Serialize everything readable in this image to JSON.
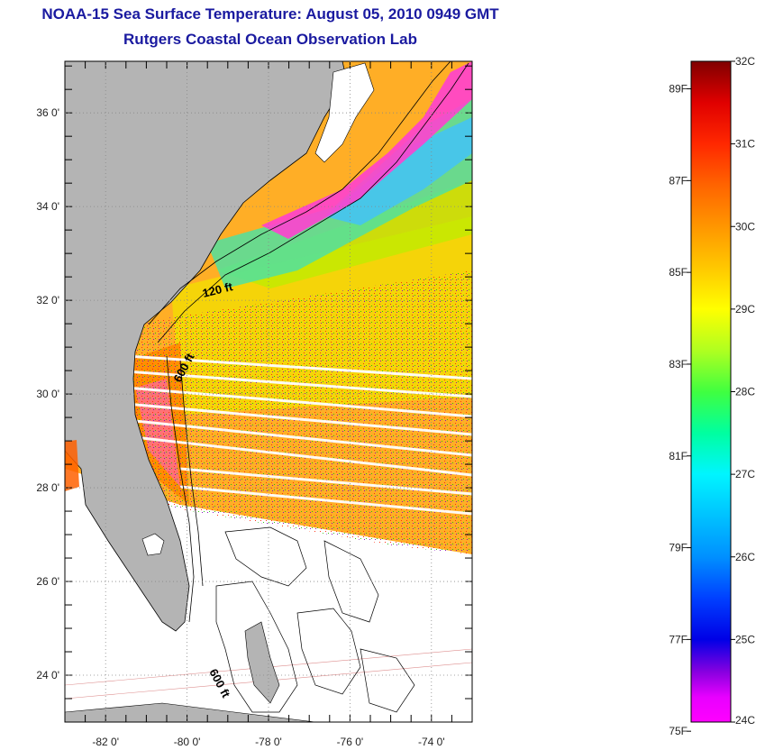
{
  "header": {
    "title": "NOAA-15 Sea Surface Temperature:  August 05, 2010 0949 GMT",
    "subtitle": "Rutgers Coastal Ocean Observation Lab"
  },
  "map": {
    "latitude_labels": [
      "36 0'",
      "34 0'",
      "32 0'",
      "30 0'",
      "28 0'",
      "26 0'",
      "24 0'"
    ],
    "longitude_labels": [
      "-82 0'",
      "-80 0'",
      "-78 0'",
      "-76 0'",
      "-74 0'"
    ],
    "latitudes": [
      36,
      34,
      32,
      30,
      28,
      26,
      24
    ],
    "longitudes": [
      -82,
      -80,
      -78,
      -76,
      -74
    ],
    "lat_range": [
      23,
      37.1
    ],
    "lon_range": [
      -83,
      -73
    ],
    "contour_labels": [
      "120 ft",
      "600 ft",
      "600 ft"
    ],
    "colors": {
      "land": "#b4b4b4",
      "no_data": "#ffffff",
      "grid": "#888888"
    }
  },
  "colorbar": {
    "celsius_labels": [
      "32C",
      "31C",
      "30C",
      "29C",
      "28C",
      "27C",
      "26C",
      "25C",
      "24C"
    ],
    "fahrenheit_labels": [
      "89F",
      "87F",
      "85F",
      "83F",
      "81F",
      "79F",
      "77F",
      "75F"
    ],
    "celsius_values": [
      32,
      31,
      30,
      29,
      28,
      27,
      26,
      25,
      24
    ],
    "fahrenheit_values": [
      89,
      87,
      85,
      83,
      81,
      79,
      77,
      75
    ],
    "range_c": [
      24,
      32
    ],
    "stops": [
      {
        "c": 24.0,
        "color": "#ff00ff"
      },
      {
        "c": 24.3,
        "color": "#e800ff"
      },
      {
        "c": 24.6,
        "color": "#8a00e0"
      },
      {
        "c": 25.0,
        "color": "#0000e6"
      },
      {
        "c": 25.5,
        "color": "#0040ff"
      },
      {
        "c": 26.0,
        "color": "#0090ff"
      },
      {
        "c": 27.0,
        "color": "#00f5ff"
      },
      {
        "c": 27.5,
        "color": "#00ffa0"
      },
      {
        "c": 28.0,
        "color": "#40ff40"
      },
      {
        "c": 28.5,
        "color": "#b0ff20"
      },
      {
        "c": 29.0,
        "color": "#ffff00"
      },
      {
        "c": 29.5,
        "color": "#ffc800"
      },
      {
        "c": 30.0,
        "color": "#ff9600"
      },
      {
        "c": 30.5,
        "color": "#ff6400"
      },
      {
        "c": 31.0,
        "color": "#ff2800"
      },
      {
        "c": 31.5,
        "color": "#e00000"
      },
      {
        "c": 32.0,
        "color": "#800000"
      }
    ]
  }
}
